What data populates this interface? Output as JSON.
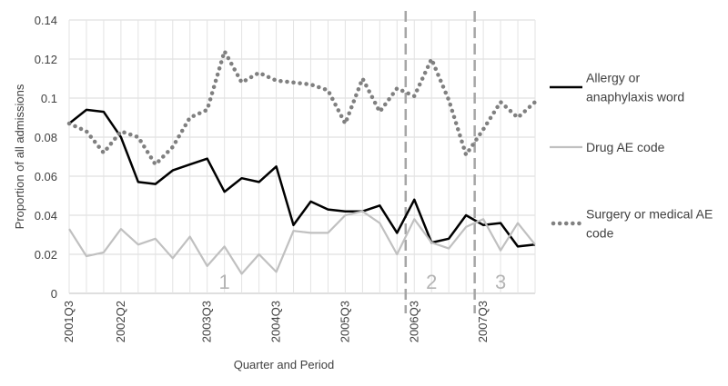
{
  "chart_data": {
    "type": "line",
    "xlabel": "Quarter and Period",
    "ylabel": "Proportion of all admissions",
    "ylim": [
      0,
      0.14
    ],
    "y_ticks": [
      "0",
      "0.02",
      "0.04",
      "0.06",
      "0.08",
      "0.1",
      "0.12",
      "0.14"
    ],
    "grid": true,
    "legend_position": "right",
    "categories": [
      "2001Q3",
      "2001Q4",
      "2002Q1",
      "2002Q2",
      "2002Q3",
      "2002Q4",
      "2003Q1",
      "2003Q2",
      "2003Q3",
      "2003Q4",
      "2004Q1",
      "2004Q2",
      "2004Q3",
      "2004Q4",
      "2005Q1",
      "2005Q2",
      "2005Q3",
      "2005Q4",
      "2006Q1",
      "2006Q2",
      "2006Q3",
      "2006Q4",
      "2007Q1",
      "2007Q2",
      "2007Q3",
      "2007Q4",
      "2008Q1",
      "2008Q2"
    ],
    "x_tick_labels": [
      "2001Q3",
      "2002Q2",
      "2003Q3",
      "2004Q3",
      "2005Q3",
      "2006Q3",
      "2007Q3"
    ],
    "series": [
      {
        "name": "Allergy or anaphylaxis word",
        "color": "#000000",
        "style": "solid",
        "values": [
          0.087,
          0.094,
          0.093,
          0.08,
          0.057,
          0.056,
          0.063,
          0.066,
          0.069,
          0.052,
          0.059,
          0.057,
          0.065,
          0.035,
          0.047,
          0.043,
          0.042,
          0.042,
          0.045,
          0.031,
          0.048,
          0.026,
          0.028,
          0.04,
          0.035,
          0.036,
          0.024,
          0.025
        ]
      },
      {
        "name": "Drug AE code",
        "color": "#c0c0c0",
        "style": "solid",
        "values": [
          0.033,
          0.019,
          0.021,
          0.033,
          0.025,
          0.028,
          0.018,
          0.029,
          0.014,
          0.024,
          0.01,
          0.02,
          0.011,
          0.032,
          0.031,
          0.031,
          0.04,
          0.042,
          0.036,
          0.02,
          0.038,
          0.026,
          0.023,
          0.034,
          0.038,
          0.022,
          0.036,
          0.025
        ]
      },
      {
        "name": "Surgery or medical AE code",
        "color": "#808080",
        "style": "dotted",
        "values": [
          0.087,
          0.083,
          0.072,
          0.083,
          0.08,
          0.066,
          0.075,
          0.09,
          0.094,
          0.124,
          0.108,
          0.113,
          0.109,
          0.108,
          0.107,
          0.104,
          0.087,
          0.11,
          0.093,
          0.105,
          0.101,
          0.12,
          0.099,
          0.071,
          0.084,
          0.098,
          0.09,
          0.098
        ]
      }
    ],
    "period_dividers_after_category": [
      "2006Q2",
      "2007Q2"
    ],
    "period_labels": [
      {
        "label": "1",
        "category": "2003Q4"
      },
      {
        "label": "2",
        "category": "2006Q4"
      },
      {
        "label": "3",
        "category": "2007Q4"
      }
    ]
  }
}
